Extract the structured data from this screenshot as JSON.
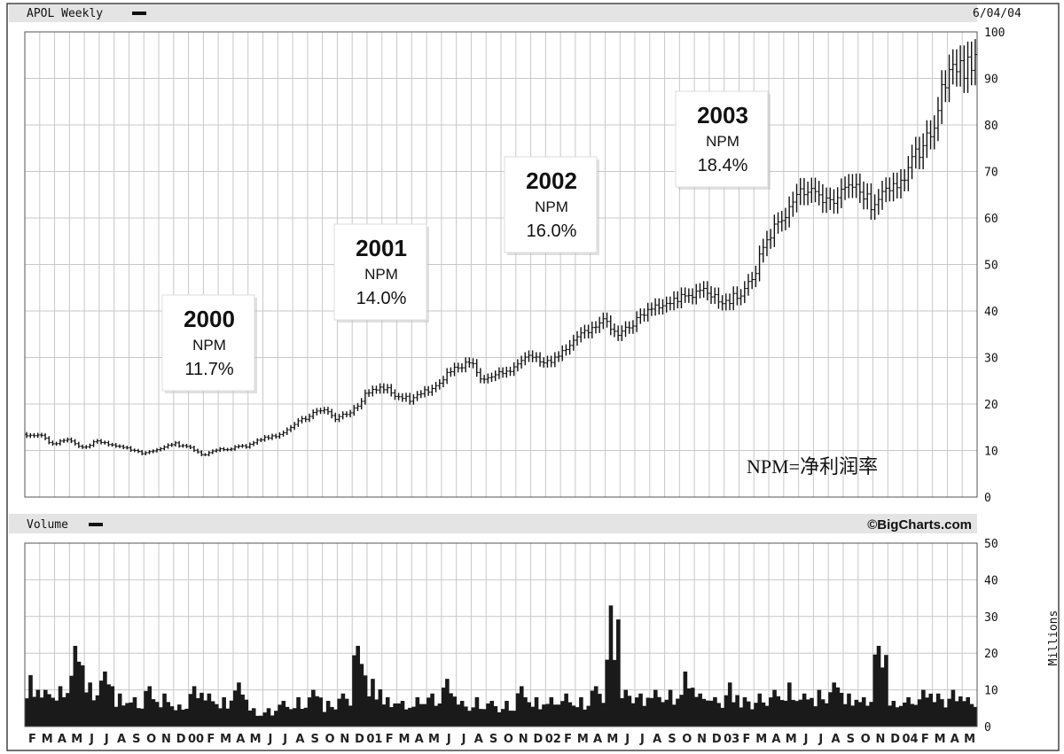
{
  "header": {
    "title": "APOL Weekly",
    "date": "6/04/04"
  },
  "volume_panel": {
    "title": "Volume",
    "credit": "©BigCharts.com",
    "axis_unit": "Millions"
  },
  "note": "NPM=净利润率",
  "annotations": [
    {
      "year": "2000",
      "label": "NPM",
      "value": "11.7%"
    },
    {
      "year": "2001",
      "label": "NPM",
      "value": "14.0%"
    },
    {
      "year": "2002",
      "label": "NPM",
      "value": "16.0%"
    },
    {
      "year": "2003",
      "label": "NPM",
      "value": "18.4%"
    }
  ],
  "chart_data": [
    {
      "type": "line",
      "title": "APOL Weekly",
      "ylim": [
        0,
        100
      ],
      "yticks": [
        0,
        10,
        20,
        30,
        40,
        50,
        60,
        70,
        80,
        90,
        100
      ],
      "x": [
        "F",
        "M",
        "A",
        "M",
        "J",
        "J",
        "A",
        "S",
        "O",
        "N",
        "D",
        "00",
        "F",
        "M",
        "A",
        "M",
        "J",
        "J",
        "A",
        "S",
        "O",
        "N",
        "D",
        "01",
        "F",
        "M",
        "A",
        "M",
        "J",
        "J",
        "A",
        "S",
        "O",
        "N",
        "D",
        "02",
        "F",
        "M",
        "A",
        "M",
        "J",
        "J",
        "A",
        "S",
        "O",
        "N",
        "D",
        "03",
        "F",
        "M",
        "A",
        "M",
        "J",
        "J",
        "A",
        "S",
        "O",
        "N",
        "D",
        "04",
        "F",
        "M",
        "A",
        "M"
      ],
      "series": [
        {
          "values": [
            13.5,
            11.5,
            12.5,
            10.5,
            12.0,
            11.0,
            10.5,
            9.5,
            10.0,
            11.5,
            11.0,
            9.0,
            10.0,
            10.5,
            11.0,
            12.5,
            13.0,
            15.0,
            17.0,
            19.0,
            17.0,
            18.0,
            22.0,
            24.0,
            22.0,
            21.0,
            22.5,
            25.0,
            27.5,
            29.0,
            25.0,
            26.5,
            28.0,
            31.0,
            29.0,
            30.0,
            33.0,
            36.0,
            38.0,
            35.0,
            37.0,
            40.0,
            42.0,
            43.0,
            43.5,
            44.0,
            42.0,
            43.0,
            47.0,
            55.0,
            60.0,
            65.0,
            66.0,
            64.0,
            65.0,
            66.5,
            63.0,
            66.0,
            68.0,
            73.0,
            78.0,
            90.0,
            92.0,
            93.0
          ]
        }
      ]
    },
    {
      "type": "bar",
      "title": "Volume",
      "ylabel": "Millions",
      "ylim": [
        0,
        50
      ],
      "yticks": [
        0,
        10,
        20,
        30,
        40,
        50
      ],
      "x": [
        "F",
        "M",
        "A",
        "M",
        "J",
        "J",
        "A",
        "S",
        "O",
        "N",
        "D",
        "00",
        "F",
        "M",
        "A",
        "M",
        "J",
        "J",
        "A",
        "S",
        "O",
        "N",
        "D",
        "01",
        "F",
        "M",
        "A",
        "M",
        "J",
        "J",
        "A",
        "S",
        "O",
        "N",
        "D",
        "02",
        "F",
        "M",
        "A",
        "M",
        "J",
        "J",
        "A",
        "S",
        "O",
        "N",
        "D",
        "03",
        "F",
        "M",
        "A",
        "M",
        "J",
        "J",
        "A",
        "S",
        "O",
        "N",
        "D",
        "04",
        "F",
        "M",
        "A",
        "M"
      ],
      "series": [
        {
          "values": [
            14,
            10,
            11,
            22,
            12,
            15,
            9,
            8,
            11,
            9,
            6,
            11,
            9,
            8,
            12,
            5,
            5,
            7,
            8,
            10,
            7,
            9,
            22,
            13,
            8,
            7,
            8,
            9,
            13,
            7,
            8,
            7,
            7,
            11,
            8,
            8,
            9,
            8,
            11,
            33,
            10,
            9,
            10,
            10,
            15,
            9,
            8,
            12,
            8,
            9,
            10,
            12,
            9,
            10,
            12,
            9,
            8,
            22,
            7,
            8,
            10,
            9,
            10,
            8
          ]
        }
      ]
    }
  ]
}
